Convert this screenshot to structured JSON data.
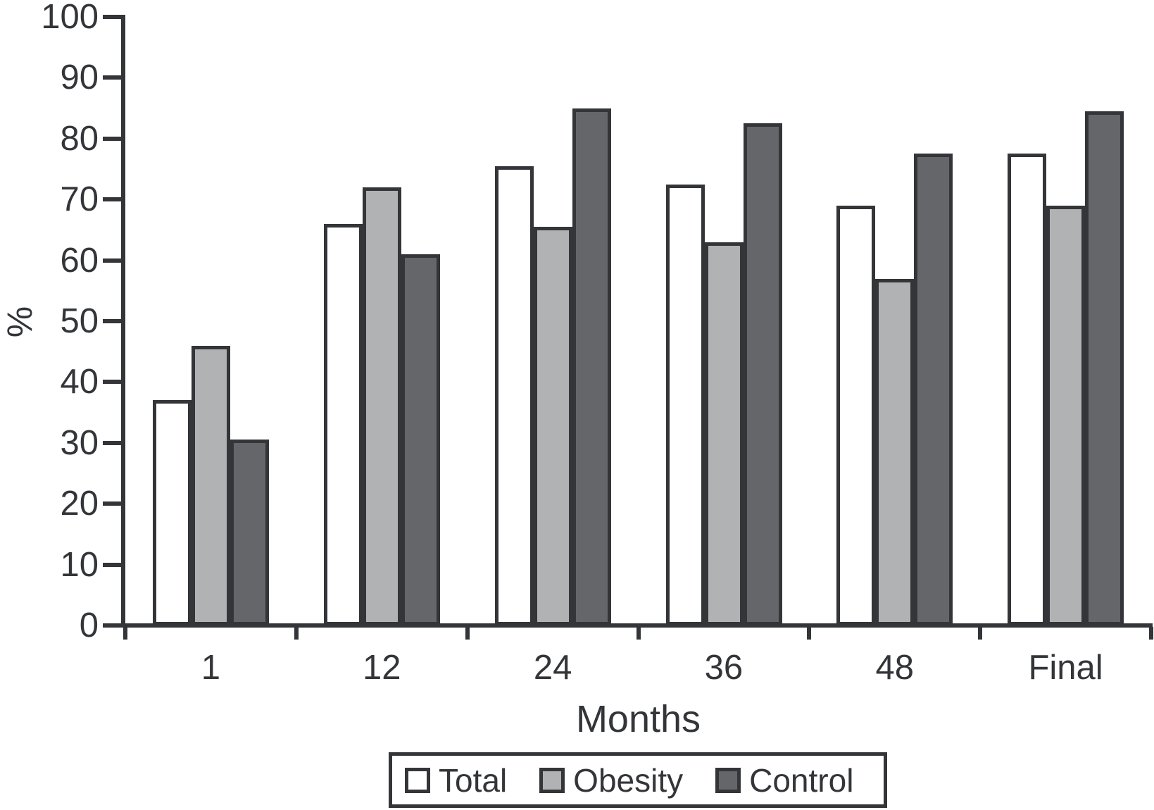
{
  "chart_data": {
    "type": "bar",
    "categories": [
      "1",
      "12",
      "24",
      "36",
      "48",
      "Final"
    ],
    "series": [
      {
        "name": "Total",
        "color": "#ffffff",
        "values": [
          37,
          66,
          75.5,
          72.5,
          69,
          77.5
        ]
      },
      {
        "name": "Obesity",
        "color": "#b1b2b4",
        "values": [
          46,
          72,
          65.5,
          63,
          57,
          69
        ]
      },
      {
        "name": "Control",
        "color": "#646669",
        "values": [
          30.5,
          61,
          85,
          82.5,
          77.5,
          84.5
        ]
      }
    ],
    "title": "",
    "xlabel": "Months",
    "ylabel": "%",
    "ylim": [
      0,
      100
    ],
    "y_ticks": [
      0,
      10,
      20,
      30,
      40,
      50,
      60,
      70,
      80,
      90,
      100
    ],
    "grid": false,
    "legend_position": "bottom",
    "line_color": "#333538"
  }
}
